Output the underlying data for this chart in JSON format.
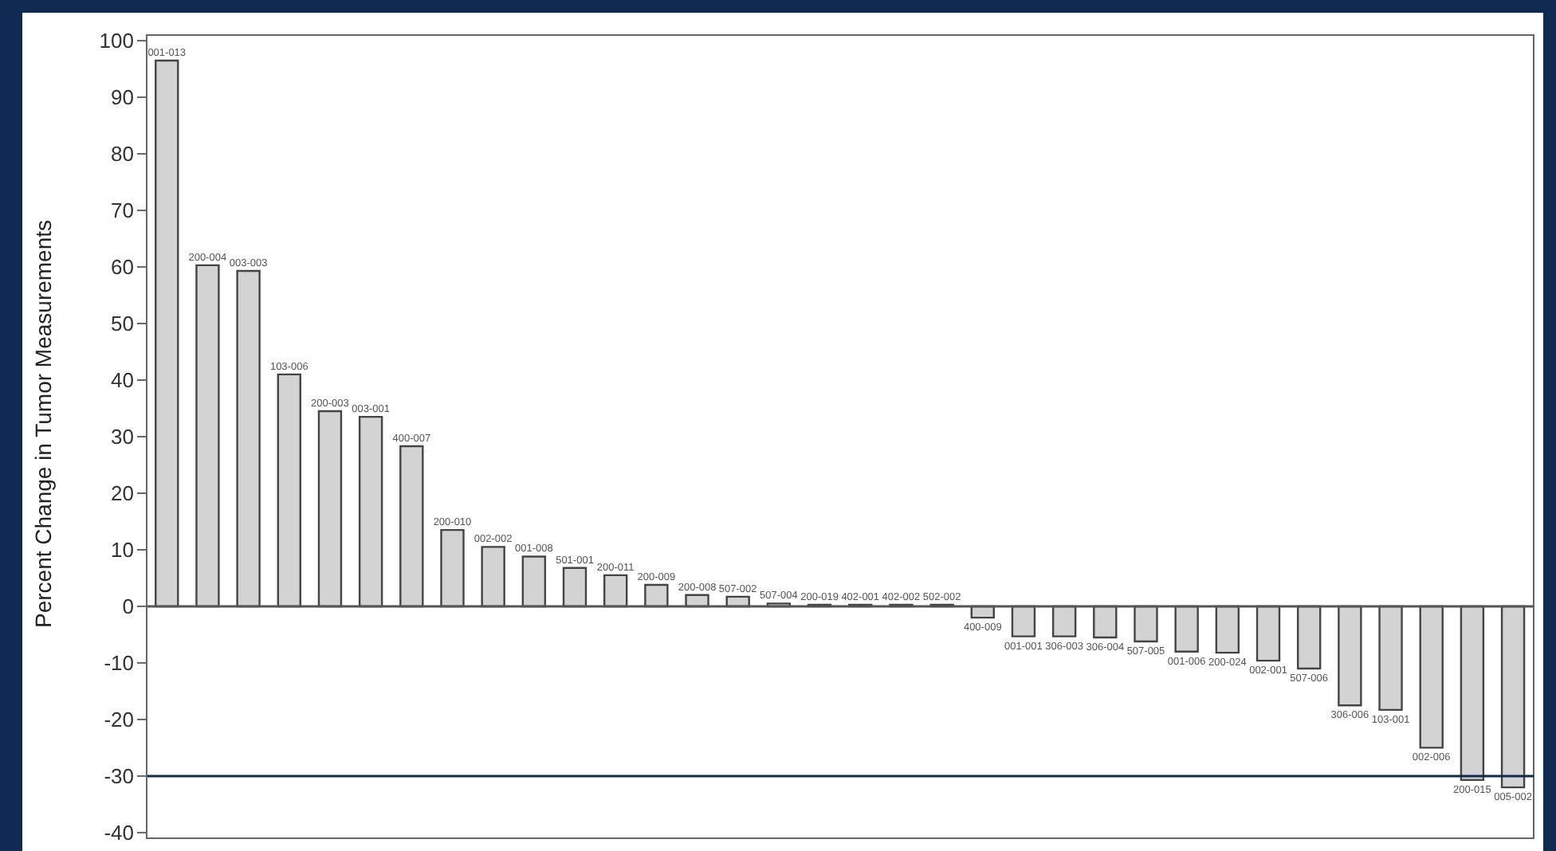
{
  "chart_data": {
    "type": "bar",
    "ylabel": "Percent Change in Tumor Measurements",
    "categories": [
      "001-013",
      "200-004",
      "003-003",
      "103-006",
      "200-003",
      "003-001",
      "400-007",
      "200-010",
      "002-002",
      "001-008",
      "501-001",
      "200-011",
      "200-009",
      "200-008",
      "507-002",
      "507-004",
      "200-019",
      "402-001",
      "402-002",
      "502-002",
      "400-009",
      "001-001",
      "306-003",
      "306-004",
      "507-005",
      "001-006",
      "200-024",
      "002-001",
      "507-006",
      "306-006",
      "103-001",
      "002-006",
      "200-015",
      "005-002"
    ],
    "values": [
      96.5,
      60.3,
      59.3,
      41,
      34.5,
      33.5,
      28.3,
      13.5,
      10.5,
      8.8,
      6.8,
      5.5,
      3.8,
      2,
      1.7,
      0.5,
      0,
      0,
      0,
      0,
      -2,
      -5.3,
      -5.3,
      -5.5,
      -6.2,
      -8,
      -8.2,
      -9.6,
      -11,
      -17.5,
      -18.3,
      -25,
      -30.7,
      -32
    ],
    "color": "#d3d3d3",
    "ylim": [
      -41,
      101
    ],
    "yticks": [
      -40,
      -30,
      -20,
      -10,
      0,
      10,
      20,
      30,
      40,
      50,
      60,
      70,
      80,
      90,
      100
    ],
    "tick_labels": "y",
    "ref_lines": [
      {
        "axis": "y",
        "value": 0,
        "color": "#555555"
      },
      {
        "axis": "y",
        "value": -30,
        "color": "#0f2b52"
      }
    ]
  }
}
